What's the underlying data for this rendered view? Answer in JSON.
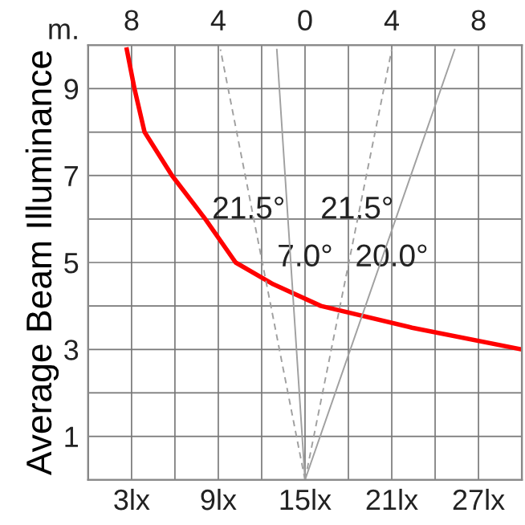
{
  "chart_data": {
    "type": "line",
    "ylabel": "Average Beam Illuminance",
    "annotations": [
      "m.",
      "21.5°",
      "21.5°",
      "7.0°",
      "20.0°"
    ],
    "series": [
      {
        "color": "#ff0000",
        "x": [
          2.67,
          3.2,
          3.9,
          5.8,
          8.1,
          10.2,
          12.8,
          16.1,
          22.4,
          30
        ],
        "values": [
          9.9,
          9,
          8,
          7,
          6,
          5,
          4.5,
          4,
          3.5,
          3
        ]
      },
      {
        "color": "#a0a0a0",
        "axis": "x2",
        "line_style": "dashed",
        "x": [
          0,
          -3.9
        ],
        "values": [
          0,
          9.9
        ]
      },
      {
        "color": "#a0a0a0",
        "axis": "x2",
        "line_style": "solid",
        "x": [
          0,
          -1.3
        ],
        "values": [
          0,
          9.9
        ]
      },
      {
        "color": "#a0a0a0",
        "axis": "x2",
        "line_style": "dashed",
        "x": [
          0,
          4.0
        ],
        "values": [
          0,
          9.9
        ]
      },
      {
        "color": "#a0a0a0",
        "axis": "x2",
        "line_style": "solid",
        "x": [
          0,
          6.9
        ],
        "values": [
          0,
          9.9
        ]
      }
    ],
    "xlim": [
      0,
      30
    ],
    "xticks": [
      {
        "value": 3,
        "label": "3lx"
      },
      {
        "value": 6,
        "label": null
      },
      {
        "value": 9,
        "label": "9lx"
      },
      {
        "value": 12,
        "label": null
      },
      {
        "value": 15,
        "label": "15lx"
      },
      {
        "value": 18,
        "label": null
      },
      {
        "value": 21,
        "label": "21lx"
      },
      {
        "value": 24,
        "label": null
      },
      {
        "value": 27,
        "label": "27lx"
      }
    ],
    "x2lim": [
      -10,
      10
    ],
    "x2ticks": [
      {
        "value": -8,
        "label": "8"
      },
      {
        "value": -4,
        "label": "4"
      },
      0,
      4,
      8
    ],
    "ylim": [
      0,
      10
    ],
    "yticks": [
      1,
      {
        "value": 2,
        "label": null
      },
      3,
      {
        "value": 4,
        "label": null
      },
      5,
      {
        "value": 6,
        "label": null
      },
      7,
      {
        "value": 8,
        "label": null
      },
      9
    ],
    "grid": true,
    "legend": false,
    "marker": "none"
  }
}
